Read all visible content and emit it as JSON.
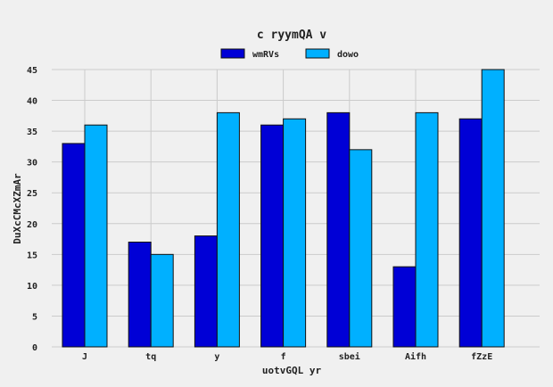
{
  "chart_data": {
    "type": "bar",
    "title": "c ryymQA v",
    "xlabel": "uotvGQL yr",
    "ylabel": "DuXcCMcXZmAr",
    "categories": [
      "J",
      "tq",
      "y",
      "f",
      "sbei",
      "Aifh",
      "fZzE"
    ],
    "series": [
      {
        "name": "wmRVs",
        "color": "#0000d6",
        "values": [
          33,
          17,
          18,
          36,
          38,
          13,
          37
        ]
      },
      {
        "name": "dowo",
        "color": "#00b0ff",
        "values": [
          36,
          15,
          38,
          37,
          32,
          38,
          45
        ]
      }
    ],
    "ylim": [
      0,
      45
    ],
    "yticks": [
      0,
      5,
      10,
      15,
      20,
      25,
      30,
      35,
      40,
      45
    ],
    "grid": true,
    "legend_position": "top-center"
  }
}
